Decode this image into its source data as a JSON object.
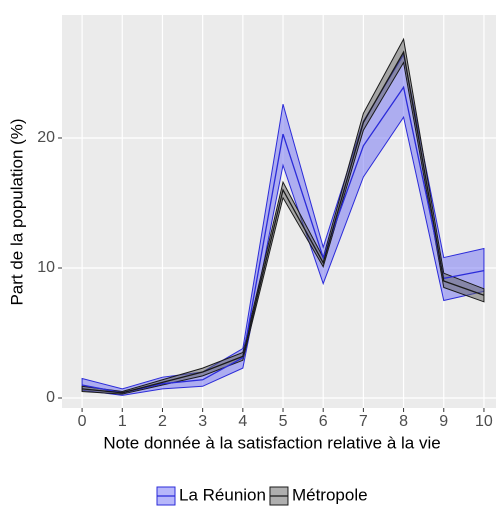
{
  "chart_data": {
    "type": "line",
    "x_label": "Note donnée à la satisfaction relative à la vie",
    "y_label": "Part de la population (%)",
    "x": [
      0,
      1,
      2,
      3,
      4,
      5,
      6,
      7,
      8,
      9,
      10
    ],
    "series": [
      {
        "name": "La Réunion",
        "color": "#2b2bd9",
        "fill": "#6f6ff5",
        "values": [
          1.0,
          0.4,
          1.1,
          1.4,
          3.1,
          20.3,
          10.8,
          19.4,
          23.9,
          9.2,
          9.8
        ],
        "lower": [
          0.6,
          0.2,
          0.7,
          0.9,
          2.3,
          17.9,
          8.8,
          17.0,
          21.6,
          7.5,
          8.2
        ],
        "upper": [
          1.5,
          0.7,
          1.6,
          2.0,
          3.8,
          22.6,
          11.6,
          21.3,
          26.4,
          10.8,
          11.5
        ]
      },
      {
        "name": "Métropole",
        "color": "#1a1a1a",
        "fill": "#606060",
        "values": [
          0.7,
          0.4,
          1.2,
          2.0,
          3.2,
          16.0,
          10.4,
          21.2,
          26.6,
          9.0,
          7.9
        ],
        "lower": [
          0.5,
          0.3,
          1.0,
          1.7,
          2.9,
          15.4,
          10.1,
          20.6,
          25.8,
          8.5,
          7.4
        ],
        "upper": [
          0.9,
          0.5,
          1.4,
          2.3,
          3.5,
          16.6,
          10.8,
          21.9,
          27.6,
          9.6,
          8.4
        ]
      }
    ],
    "xlim": [
      -0.5,
      10.3
    ],
    "ylim": [
      -0.77,
      29.46
    ],
    "xticks": [
      0,
      1,
      2,
      3,
      4,
      5,
      6,
      7,
      8,
      9,
      10
    ],
    "yticks": [
      0,
      10,
      20
    ],
    "grid": true,
    "legend": "bottom"
  }
}
